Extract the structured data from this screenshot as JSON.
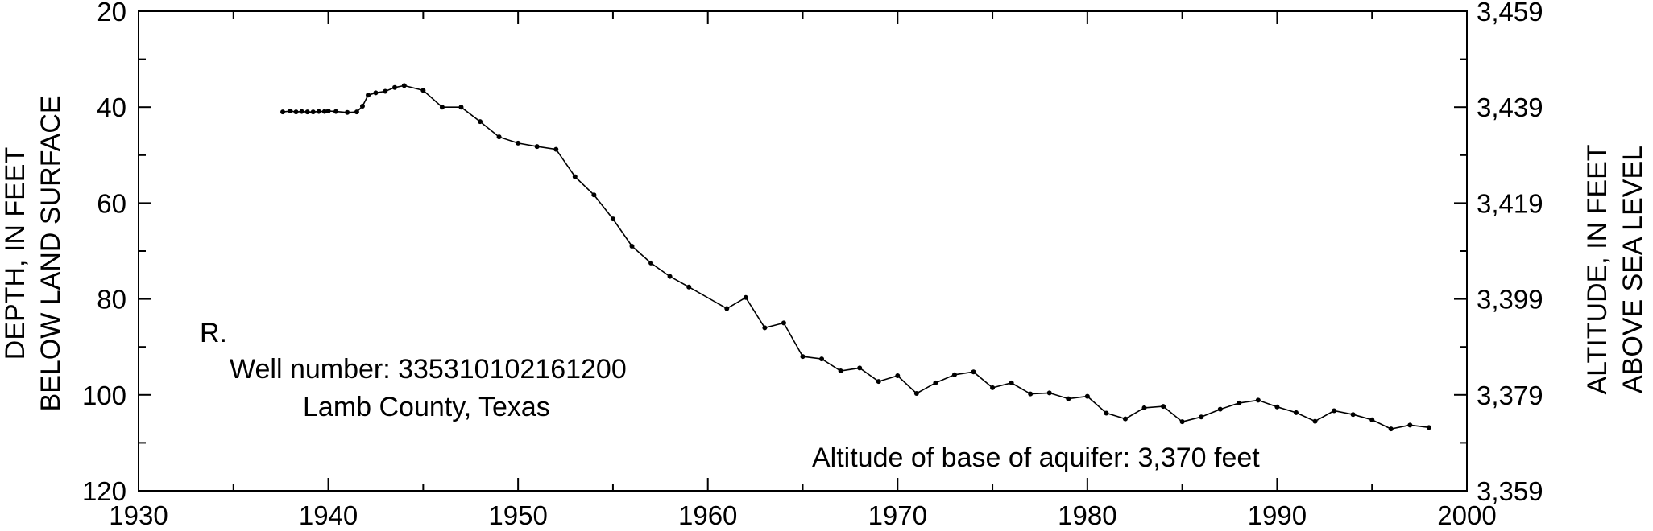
{
  "chart_data": {
    "type": "line",
    "title": "",
    "xlabel": "",
    "ylabel_left_lines": [
      "DEPTH, IN FEET",
      "BELOW LAND SURFACE"
    ],
    "ylabel_right_lines": [
      "ALTITUDE, IN FEET",
      "ABOVE SEA LEVEL"
    ],
    "xlim": [
      1930,
      2000
    ],
    "ylim_depth": [
      120,
      20
    ],
    "y_inverted": true,
    "x_ticks": [
      "1930",
      "1940",
      "1950",
      "1960",
      "1970",
      "1980",
      "1990",
      "2000"
    ],
    "y_left_ticks": [
      "20",
      "40",
      "60",
      "80",
      "100",
      "120"
    ],
    "y_right_ticks": [
      "3,459",
      "3,439",
      "3,419",
      "3,399",
      "3,379",
      "3,359"
    ],
    "annotations": {
      "marker": "R.",
      "well_number": "Well number: 335310102161200",
      "county": "Lamb County, Texas",
      "base_altitude": "Altitude of base of aquifer: 3,370 feet"
    },
    "grid": false,
    "series": [
      {
        "x": [
          1937.6,
          1938.0,
          1938.3,
          1938.6,
          1938.9,
          1939.2,
          1939.5,
          1939.8,
          1940.0,
          1940.4,
          1941.0,
          1941.5,
          1941.8,
          1942.1,
          1942.5,
          1943.0,
          1943.5,
          1944.0,
          1945.0,
          1946.0,
          1947.0,
          1948.0,
          1949.0,
          1950.0,
          1951.0,
          1952.0,
          1953.0,
          1954.0,
          1955.0,
          1956.0,
          1957.0,
          1958.0,
          1959.0,
          1961.0,
          1962.0,
          1963.0,
          1964.0,
          1965.0,
          1966.0,
          1967.0,
          1968.0,
          1969.0,
          1970.0,
          1971.0,
          1972.0,
          1973.0,
          1974.0,
          1975.0,
          1976.0,
          1977.0,
          1978.0,
          1979.0,
          1980.0,
          1981.0,
          1982.0,
          1983.0,
          1984.0,
          1985.0,
          1986.0,
          1987.0,
          1988.0,
          1989.0,
          1990.0,
          1991.0,
          1992.0,
          1993.0,
          1994.0,
          1995.0,
          1996.0,
          1997.0,
          1998.0
        ],
        "y": [
          41.0,
          40.8,
          41.0,
          40.9,
          41.0,
          41.0,
          40.9,
          40.9,
          40.8,
          40.9,
          41.1,
          41.0,
          39.8,
          37.5,
          37.0,
          36.7,
          35.9,
          35.5,
          36.5,
          40.0,
          40.0,
          43.0,
          46.2,
          47.5,
          48.2,
          48.8,
          54.5,
          58.3,
          63.3,
          69.0,
          72.5,
          75.3,
          77.5,
          82.0,
          79.7,
          86.0,
          85.0,
          92.0,
          92.5,
          95.0,
          94.4,
          97.2,
          96.0,
          99.7,
          97.5,
          95.8,
          95.2,
          98.5,
          97.5,
          99.8,
          99.6,
          100.8,
          100.3,
          103.8,
          105.0,
          102.7,
          102.4,
          105.6,
          104.6,
          103.0,
          101.7,
          101.1,
          102.5,
          103.7,
          105.5,
          103.3,
          104.1,
          105.2,
          107.1,
          106.3,
          106.8
        ]
      }
    ]
  }
}
